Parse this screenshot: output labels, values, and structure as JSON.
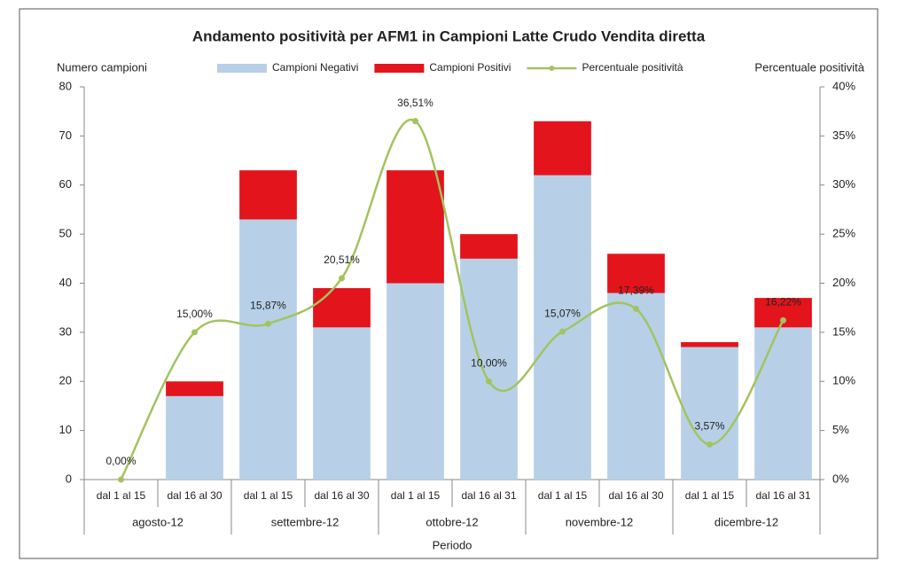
{
  "chart_data": {
    "type": "bar",
    "title": "Andamento positività per AFM1 in Campioni Latte Crudo Vendita diretta",
    "ylabel": "Numero campioni",
    "y2label": "Percentuale positività",
    "xlabel": "Periodo",
    "categories": [
      "dal 1 al 15",
      "dal 16 al 30",
      "dal 1 al 15",
      "dal 16 al 30",
      "dal 1 al 15",
      "dal 16 al 31",
      "dal 1 al 15",
      "dal 16 al 30",
      "dal 1 al 15",
      "dal 16 al 31"
    ],
    "group_categories": [
      "agosto-12",
      "settembre-12",
      "ottobre-12",
      "novembre-12",
      "dicembre-12"
    ],
    "stacked": true,
    "series": [
      {
        "name": "Campioni Negativi",
        "color": "#b7d0e8",
        "values": [
          0,
          17,
          53,
          31,
          40,
          45,
          62,
          38,
          27,
          31
        ]
      },
      {
        "name": "Campioni Positivi",
        "color": "#e3141c",
        "values": [
          0,
          3,
          10,
          8,
          23,
          5,
          11,
          8,
          1,
          6
        ]
      },
      {
        "name": "Percentuale positività",
        "color": "#a3c35f",
        "type": "line",
        "axis": "y2",
        "values": [
          0,
          15,
          15.87,
          20.51,
          36.51,
          10,
          15.07,
          17.39,
          3.57,
          16.22
        ],
        "value_labels": [
          "0,00%",
          "15,00%",
          "15,87%",
          "20,51%",
          "36,51%",
          "10,00%",
          "15,07%",
          "17,39%",
          "3,57%",
          "16,22%"
        ]
      }
    ],
    "ylim": [
      0,
      80
    ],
    "yticks": [
      0,
      10,
      20,
      30,
      40,
      50,
      60,
      70,
      80
    ],
    "y2lim": [
      0,
      40
    ],
    "y2ticks": [
      {
        "value": 0,
        "label": "0%"
      },
      {
        "value": 5,
        "label": "5%"
      },
      {
        "value": 10,
        "label": "10%"
      },
      {
        "value": 15,
        "label": "15%"
      },
      {
        "value": 20,
        "label": "20%"
      },
      {
        "value": 25,
        "label": "25%"
      },
      {
        "value": 30,
        "label": "30%"
      },
      {
        "value": 35,
        "label": "35%"
      },
      {
        "value": 40,
        "label": "40%"
      }
    ],
    "legend": "top"
  }
}
